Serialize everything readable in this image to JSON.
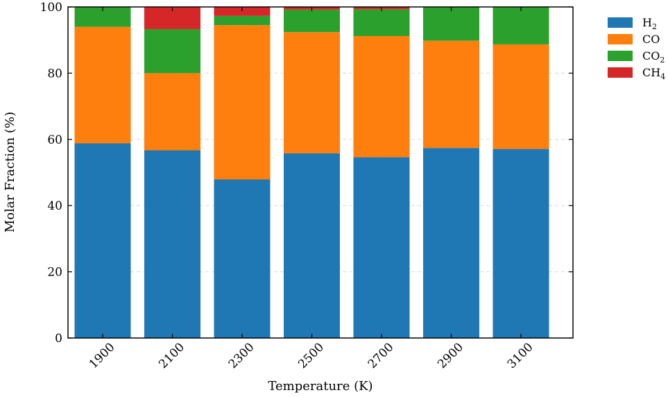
{
  "chart_data": {
    "type": "bar",
    "stacked": true,
    "categories": [
      "1900",
      "2100",
      "2300",
      "2500",
      "2700",
      "2900",
      "3100"
    ],
    "series": [
      {
        "name": "H",
        "sub": "2",
        "color": "#1f77b4",
        "values": [
          58.8,
          56.7,
          47.9,
          55.8,
          54.6,
          57.4,
          57.1
        ]
      },
      {
        "name": "CO",
        "sub": "",
        "color": "#ff7f0e",
        "values": [
          35.2,
          23.3,
          46.6,
          36.6,
          36.6,
          32.4,
          31.6
        ]
      },
      {
        "name": "CO",
        "sub": "2",
        "color": "#2ca02c",
        "values": [
          6.0,
          13.3,
          2.8,
          6.8,
          8.1,
          10.2,
          11.3
        ]
      },
      {
        "name": "CH",
        "sub": "4",
        "color": "#d62728",
        "values": [
          0.0,
          6.7,
          2.7,
          0.8,
          0.7,
          0.0,
          0.0
        ]
      }
    ],
    "xlabel": "Temperature (K)",
    "ylabel": "Molar Fraction (%)",
    "ylim": [
      0,
      100
    ],
    "yticks": [
      "0",
      "20",
      "40",
      "60",
      "80",
      "100"
    ],
    "grid": true,
    "legend_position": "outside-top-right"
  }
}
